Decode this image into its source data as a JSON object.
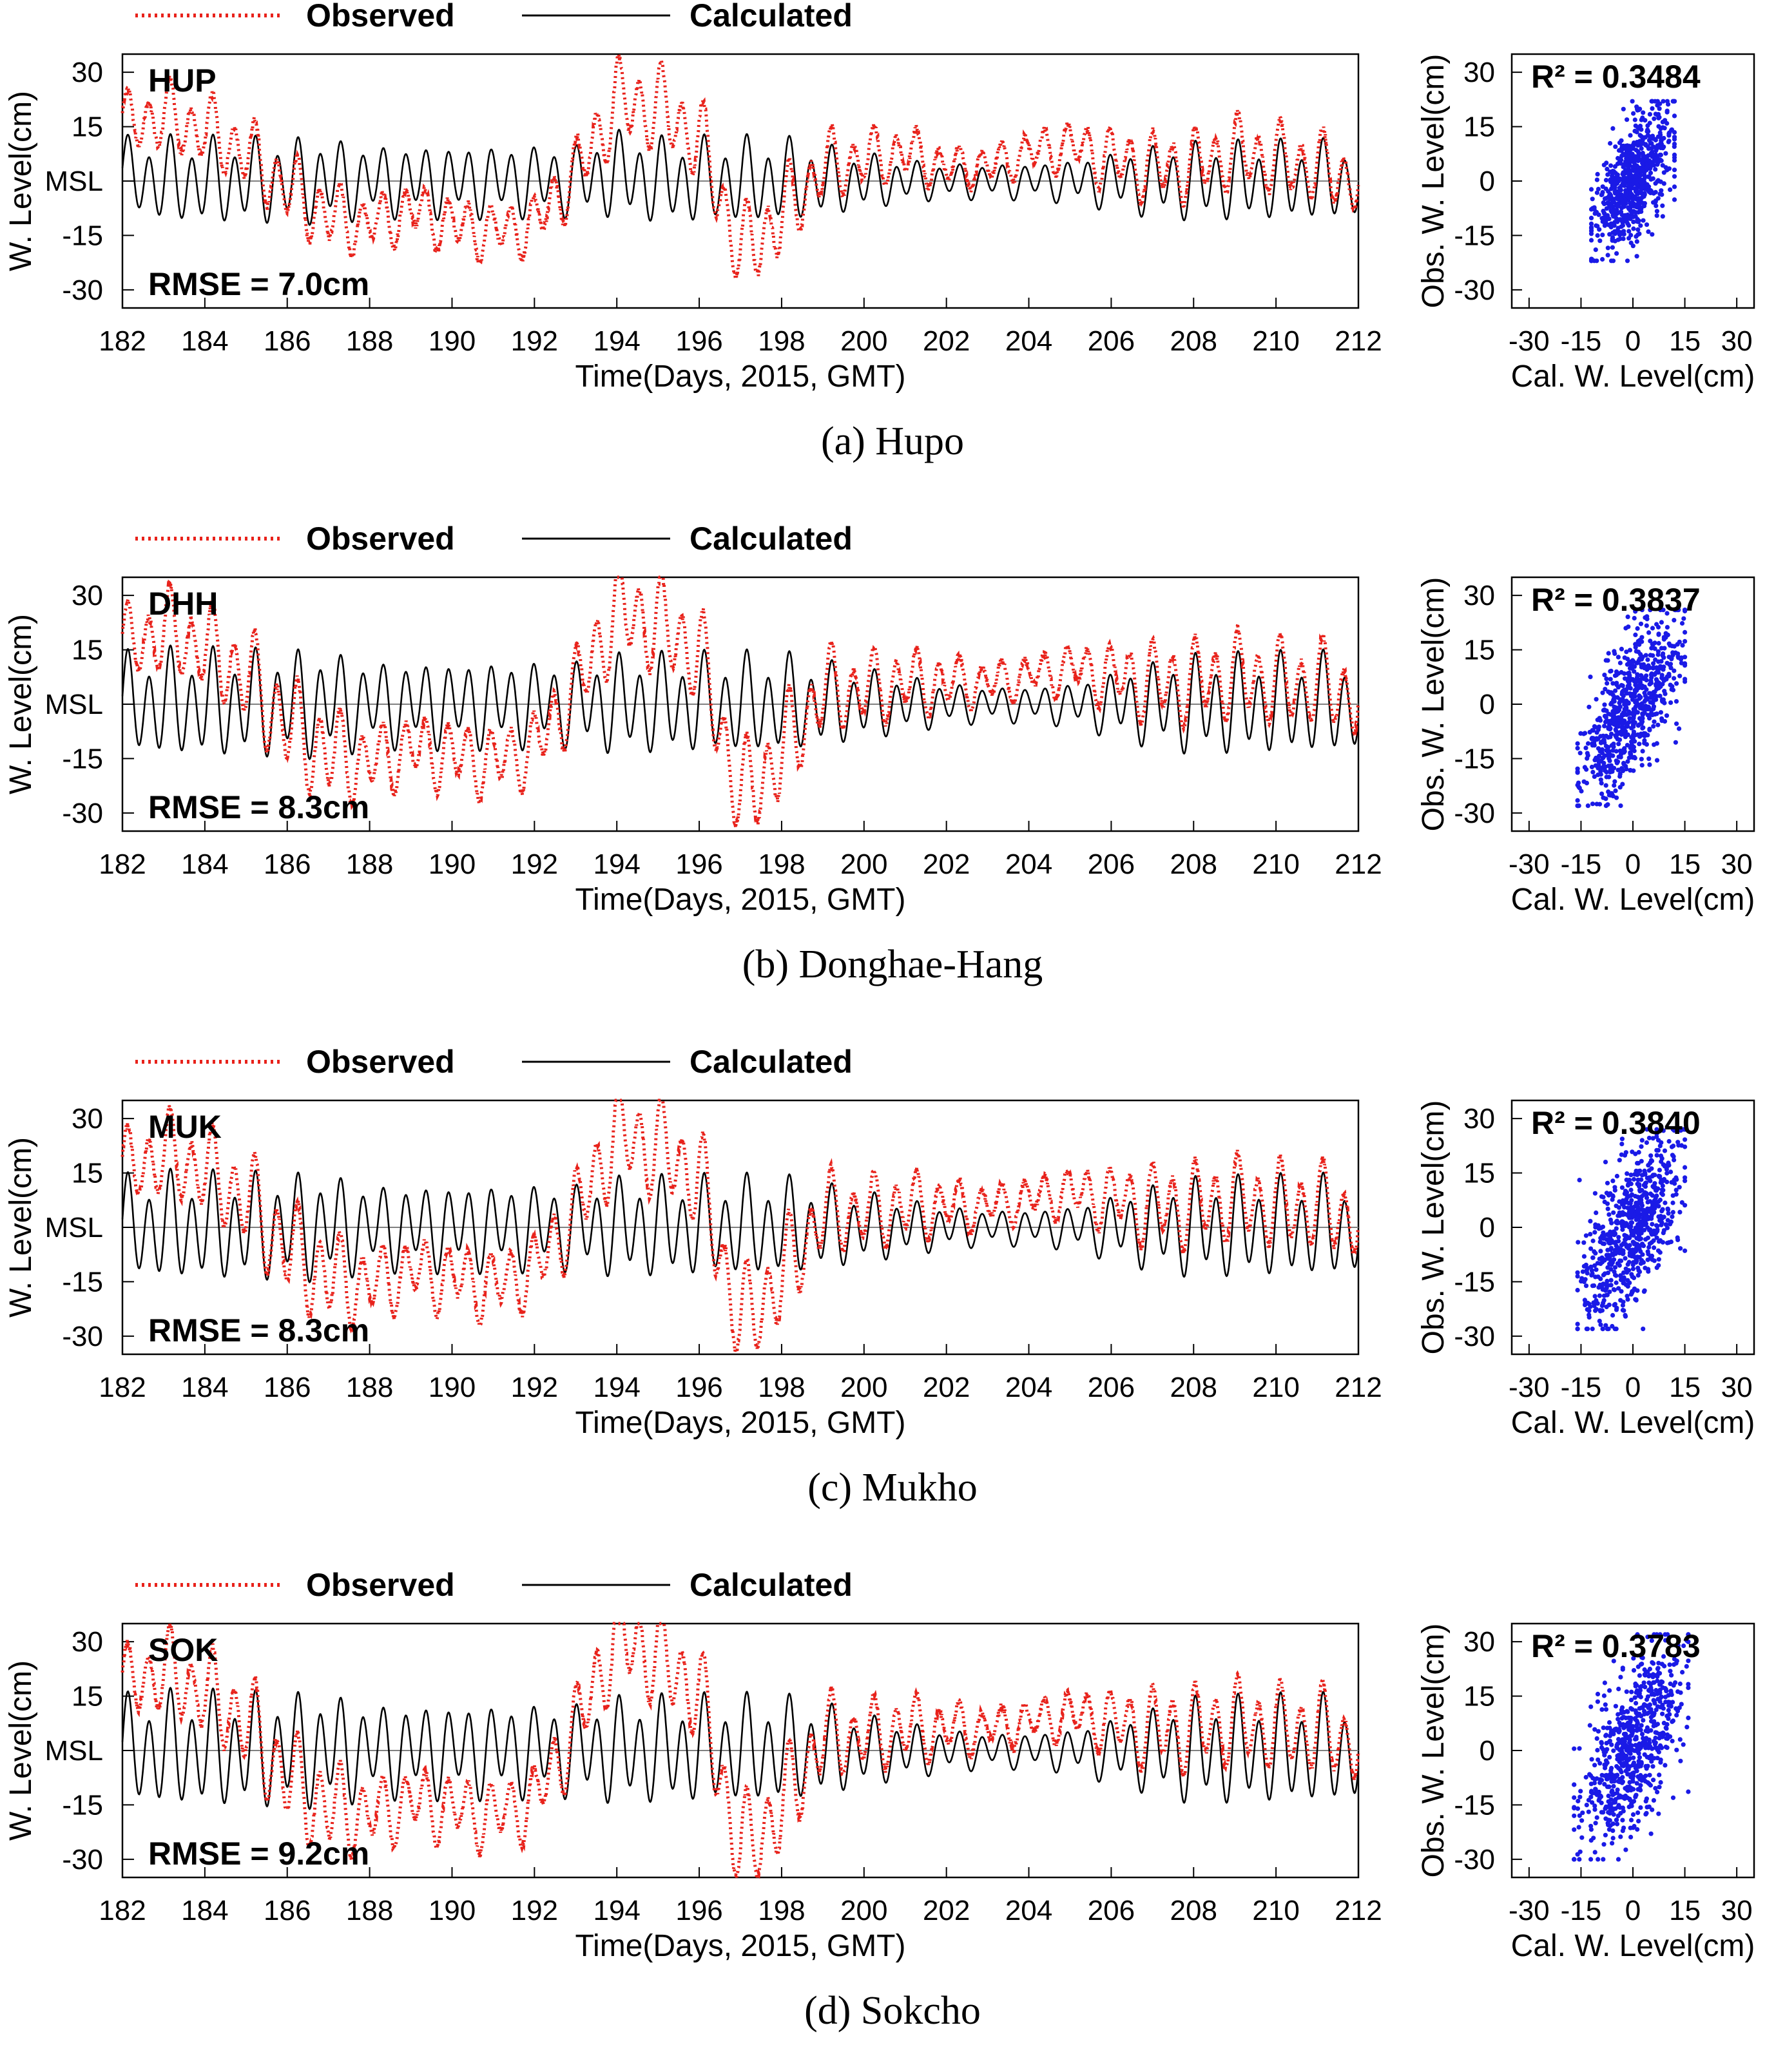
{
  "legend": {
    "observed_label": "Observed",
    "calculated_label": "Calculated",
    "observed_color": "#e8221b",
    "calculated_color": "#000000",
    "scatter_color": "#1a1ae6"
  },
  "chart_data": [
    {
      "type": "line",
      "panel": "a",
      "station": "HUP",
      "rmse_text": "RMSE = 7.0cm",
      "xlabel": "Time(Days, 2015, GMT)",
      "ylabel": "W. Level(cm)",
      "xlim": [
        182,
        212
      ],
      "ylim": [
        -35,
        35
      ],
      "x_ticks": [
        "182",
        "184",
        "186",
        "188",
        "190",
        "192",
        "194",
        "196",
        "198",
        "200",
        "202",
        "204",
        "206",
        "208",
        "210",
        "212"
      ],
      "y_ticks": [
        {
          "value": 30,
          "label": "30"
        },
        {
          "value": 15,
          "label": "15"
        },
        {
          "value": 0,
          "label": "MSL"
        },
        {
          "value": -15,
          "label": "-15"
        },
        {
          "value": -30,
          "label": "-30"
        }
      ],
      "series": [
        {
          "name": "Observed",
          "x": [
            182,
            183,
            184,
            185,
            186,
            187,
            188,
            189,
            190,
            191,
            192,
            193,
            194,
            195,
            196,
            197,
            198,
            199,
            200,
            201,
            202,
            203,
            204,
            205,
            206,
            207,
            208,
            209,
            210,
            211,
            212
          ],
          "values": [
            16,
            18,
            14,
            8,
            -2,
            -10,
            -12,
            -8,
            -12,
            -14,
            -12,
            2,
            22,
            20,
            12,
            -20,
            -10,
            4,
            6,
            8,
            4,
            4,
            8,
            10,
            6,
            4,
            4,
            8,
            6,
            4,
            0
          ],
          "daily_range": [
            8,
            10,
            10,
            10,
            10,
            10,
            8,
            8,
            8,
            8,
            8,
            10,
            12,
            12,
            12,
            12,
            12,
            10,
            8,
            8,
            6,
            6,
            6,
            7,
            9,
            10,
            10,
            10,
            10,
            10,
            10
          ]
        },
        {
          "name": "Calculated",
          "x": [
            182,
            183,
            184,
            185,
            186,
            187,
            188,
            189,
            190,
            191,
            192,
            193,
            194,
            195,
            196,
            197,
            198,
            199,
            200,
            201,
            202,
            203,
            204,
            205,
            206,
            207,
            208,
            209,
            210,
            211,
            212
          ],
          "values": [
            2,
            0,
            0,
            0,
            0,
            0,
            0,
            0,
            0,
            0,
            0,
            0,
            2,
            0,
            0,
            0,
            0,
            0,
            0,
            0,
            0,
            0,
            0,
            0,
            0,
            0,
            0,
            0,
            0,
            0,
            0
          ],
          "daily_range": [
            10,
            12,
            12,
            12,
            12,
            12,
            10,
            10,
            10,
            10,
            10,
            10,
            12,
            12,
            12,
            12,
            12,
            10,
            8,
            6,
            5,
            5,
            5,
            6,
            8,
            10,
            11,
            11,
            11,
            11,
            11
          ]
        }
      ]
    },
    {
      "type": "scatter",
      "panel": "a",
      "r2_text": "R² = 0.3484",
      "xlabel": "Cal. W. Level(cm)",
      "ylabel": "Obs. W. Level(cm)",
      "xlim": [
        -35,
        35
      ],
      "ylim": [
        -35,
        35
      ],
      "x_ticks": [
        "-30",
        "-15",
        "0",
        "15",
        "30"
      ],
      "y_ticks": [
        "30",
        "15",
        "0",
        "-15",
        "-30"
      ],
      "cloud": {
        "x_range": [
          -12,
          12
        ],
        "y_range": [
          -22,
          22
        ],
        "r2": 0.3484
      }
    },
    {
      "type": "line",
      "panel": "b",
      "station": "DHH",
      "rmse_text": "RMSE = 8.3cm",
      "xlabel": "Time(Days, 2015, GMT)",
      "ylabel": "W. Level(cm)",
      "xlim": [
        182,
        212
      ],
      "ylim": [
        -35,
        35
      ],
      "x_ticks": [
        "182",
        "184",
        "186",
        "188",
        "190",
        "192",
        "194",
        "196",
        "198",
        "200",
        "202",
        "204",
        "206",
        "208",
        "210",
        "212"
      ],
      "y_ticks": [
        {
          "value": 30,
          "label": "30"
        },
        {
          "value": 15,
          "label": "15"
        },
        {
          "value": 0,
          "label": "MSL"
        },
        {
          "value": -15,
          "label": "-15"
        },
        {
          "value": -30,
          "label": "-30"
        }
      ],
      "series": [
        {
          "name": "Observed",
          "x": [
            182,
            183,
            184,
            185,
            186,
            187,
            188,
            189,
            190,
            191,
            192,
            193,
            194,
            195,
            196,
            197,
            198,
            199,
            200,
            201,
            202,
            203,
            204,
            205,
            206,
            207,
            208,
            209,
            210,
            211,
            212
          ],
          "values": [
            16,
            20,
            16,
            8,
            -6,
            -14,
            -16,
            -12,
            -14,
            -16,
            -12,
            4,
            26,
            22,
            14,
            -26,
            -14,
            4,
            4,
            6,
            6,
            6,
            8,
            10,
            8,
            6,
            6,
            8,
            6,
            6,
            2
          ],
          "daily_range": [
            10,
            12,
            12,
            14,
            14,
            14,
            10,
            10,
            10,
            10,
            10,
            12,
            14,
            14,
            14,
            14,
            14,
            12,
            10,
            10,
            8,
            6,
            6,
            7,
            9,
            12,
            12,
            12,
            12,
            12,
            12
          ]
        },
        {
          "name": "Calculated",
          "x": [
            182,
            183,
            184,
            185,
            186,
            187,
            188,
            189,
            190,
            191,
            192,
            193,
            194,
            195,
            196,
            197,
            198,
            199,
            200,
            201,
            202,
            203,
            204,
            205,
            206,
            207,
            208,
            209,
            210,
            211,
            212
          ],
          "values": [
            0,
            0,
            0,
            0,
            0,
            0,
            0,
            0,
            0,
            0,
            0,
            0,
            0,
            0,
            0,
            0,
            0,
            0,
            0,
            0,
            0,
            0,
            0,
            0,
            0,
            0,
            0,
            0,
            0,
            0,
            0
          ],
          "daily_range": [
            14,
            15,
            15,
            15,
            15,
            15,
            12,
            12,
            12,
            12,
            12,
            12,
            14,
            14,
            14,
            14,
            14,
            12,
            10,
            8,
            6,
            5,
            5,
            6,
            9,
            12,
            14,
            14,
            14,
            14,
            14
          ]
        }
      ]
    },
    {
      "type": "scatter",
      "panel": "b",
      "r2_text": "R² = 0.3837",
      "xlabel": "Cal. W. Level(cm)",
      "ylabel": "Obs. W. Level(cm)",
      "xlim": [
        -35,
        35
      ],
      "ylim": [
        -35,
        35
      ],
      "x_ticks": [
        "-30",
        "-15",
        "0",
        "15",
        "30"
      ],
      "y_ticks": [
        "30",
        "15",
        "0",
        "-15",
        "-30"
      ],
      "cloud": {
        "x_range": [
          -16,
          15
        ],
        "y_range": [
          -28,
          26
        ],
        "r2": 0.3837
      }
    },
    {
      "type": "line",
      "panel": "c",
      "station": "MUK",
      "rmse_text": "RMSE = 8.3cm",
      "xlabel": "Time(Days, 2015, GMT)",
      "ylabel": "W. Level(cm)",
      "xlim": [
        182,
        212
      ],
      "ylim": [
        -35,
        35
      ],
      "x_ticks": [
        "182",
        "184",
        "186",
        "188",
        "190",
        "192",
        "194",
        "196",
        "198",
        "200",
        "202",
        "204",
        "206",
        "208",
        "210",
        "212"
      ],
      "y_ticks": [
        {
          "value": 30,
          "label": "30"
        },
        {
          "value": 15,
          "label": "15"
        },
        {
          "value": 0,
          "label": "MSL"
        },
        {
          "value": -15,
          "label": "-15"
        },
        {
          "value": -30,
          "label": "-30"
        }
      ],
      "series": [
        {
          "name": "Observed",
          "x": [
            182,
            183,
            184,
            185,
            186,
            187,
            188,
            189,
            190,
            191,
            192,
            193,
            194,
            195,
            196,
            197,
            198,
            199,
            200,
            201,
            202,
            203,
            204,
            205,
            206,
            207,
            208,
            209,
            210,
            211,
            212
          ],
          "values": [
            16,
            20,
            16,
            8,
            -6,
            -14,
            -16,
            -12,
            -14,
            -16,
            -12,
            4,
            26,
            22,
            14,
            -27,
            -14,
            4,
            4,
            6,
            6,
            6,
            8,
            10,
            8,
            6,
            6,
            8,
            6,
            6,
            2
          ],
          "daily_range": [
            10,
            12,
            12,
            14,
            14,
            14,
            10,
            10,
            10,
            10,
            10,
            12,
            14,
            14,
            14,
            14,
            14,
            12,
            10,
            10,
            8,
            6,
            6,
            7,
            9,
            12,
            12,
            12,
            12,
            12,
            12
          ]
        },
        {
          "name": "Calculated",
          "x": [
            182,
            183,
            184,
            185,
            186,
            187,
            188,
            189,
            190,
            191,
            192,
            193,
            194,
            195,
            196,
            197,
            198,
            199,
            200,
            201,
            202,
            203,
            204,
            205,
            206,
            207,
            208,
            209,
            210,
            211,
            212
          ],
          "values": [
            0,
            0,
            0,
            0,
            0,
            0,
            0,
            0,
            0,
            0,
            0,
            0,
            0,
            0,
            0,
            0,
            0,
            0,
            0,
            0,
            0,
            0,
            0,
            0,
            0,
            0,
            0,
            0,
            0,
            0,
            0
          ],
          "daily_range": [
            14,
            15,
            15,
            15,
            15,
            15,
            12,
            12,
            12,
            12,
            12,
            12,
            14,
            14,
            14,
            14,
            14,
            12,
            10,
            8,
            6,
            5,
            5,
            6,
            9,
            12,
            14,
            14,
            14,
            14,
            14
          ]
        }
      ]
    },
    {
      "type": "scatter",
      "panel": "c",
      "r2_text": "R² = 0.3840",
      "xlabel": "Cal. W. Level(cm)",
      "ylabel": "Obs. W. Level(cm)",
      "xlim": [
        -35,
        35
      ],
      "ylim": [
        -35,
        35
      ],
      "x_ticks": [
        "-30",
        "-15",
        "0",
        "15",
        "30"
      ],
      "y_ticks": [
        "30",
        "15",
        "0",
        "-15",
        "-30"
      ],
      "cloud": {
        "x_range": [
          -16,
          15
        ],
        "y_range": [
          -28,
          27
        ],
        "r2": 0.384
      }
    },
    {
      "type": "line",
      "panel": "d",
      "station": "SOK",
      "rmse_text": "RMSE = 9.2cm",
      "xlabel": "Time(Days, 2015, GMT)",
      "ylabel": "W. Level(cm)",
      "xlim": [
        182,
        212
      ],
      "ylim": [
        -35,
        35
      ],
      "x_ticks": [
        "182",
        "184",
        "186",
        "188",
        "190",
        "192",
        "194",
        "196",
        "198",
        "200",
        "202",
        "204",
        "206",
        "208",
        "210",
        "212"
      ],
      "y_ticks": [
        {
          "value": 30,
          "label": "30"
        },
        {
          "value": 15,
          "label": "15"
        },
        {
          "value": 0,
          "label": "MSL"
        },
        {
          "value": -15,
          "label": "-15"
        },
        {
          "value": -30,
          "label": "-30"
        }
      ],
      "series": [
        {
          "name": "Observed",
          "x": [
            182,
            183,
            184,
            185,
            186,
            187,
            188,
            189,
            190,
            191,
            192,
            193,
            194,
            195,
            196,
            197,
            198,
            199,
            200,
            201,
            202,
            203,
            204,
            205,
            206,
            207,
            208,
            209,
            210,
            211,
            212
          ],
          "values": [
            18,
            22,
            16,
            8,
            -8,
            -16,
            -18,
            -14,
            -16,
            -18,
            -14,
            6,
            32,
            26,
            16,
            -28,
            -16,
            4,
            4,
            6,
            6,
            6,
            8,
            10,
            8,
            6,
            6,
            8,
            6,
            6,
            2
          ],
          "daily_range": [
            10,
            12,
            12,
            14,
            14,
            14,
            10,
            10,
            10,
            10,
            10,
            12,
            14,
            14,
            14,
            14,
            14,
            12,
            10,
            10,
            8,
            6,
            6,
            7,
            9,
            12,
            12,
            12,
            12,
            12,
            12
          ]
        },
        {
          "name": "Calculated",
          "x": [
            182,
            183,
            184,
            185,
            186,
            187,
            188,
            189,
            190,
            191,
            192,
            193,
            194,
            195,
            196,
            197,
            198,
            199,
            200,
            201,
            202,
            203,
            204,
            205,
            206,
            207,
            208,
            209,
            210,
            211,
            212
          ],
          "values": [
            0,
            0,
            0,
            0,
            0,
            0,
            0,
            0,
            0,
            0,
            0,
            0,
            0,
            0,
            0,
            0,
            0,
            0,
            0,
            0,
            0,
            0,
            0,
            0,
            0,
            0,
            0,
            0,
            0,
            0,
            0
          ],
          "daily_range": [
            15,
            16,
            16,
            16,
            16,
            16,
            13,
            13,
            13,
            13,
            13,
            13,
            15,
            15,
            15,
            15,
            15,
            13,
            10,
            8,
            6,
            5,
            5,
            6,
            9,
            12,
            15,
            15,
            15,
            15,
            15
          ]
        }
      ]
    },
    {
      "type": "scatter",
      "panel": "d",
      "r2_text": "R² = 0.3783",
      "xlabel": "Cal. W. Level(cm)",
      "ylabel": "Obs. W. Level(cm)",
      "xlim": [
        -35,
        35
      ],
      "ylim": [
        -35,
        35
      ],
      "x_ticks": [
        "-30",
        "-15",
        "0",
        "15",
        "30"
      ],
      "y_ticks": [
        "30",
        "15",
        "0",
        "-15",
        "-30"
      ],
      "cloud": {
        "x_range": [
          -17,
          16
        ],
        "y_range": [
          -30,
          32
        ],
        "r2": 0.3783
      }
    }
  ],
  "captions": [
    "(a) Hupo",
    "(b) Donghae-Hang",
    "(c) Mukho",
    "(d) Sokcho"
  ]
}
